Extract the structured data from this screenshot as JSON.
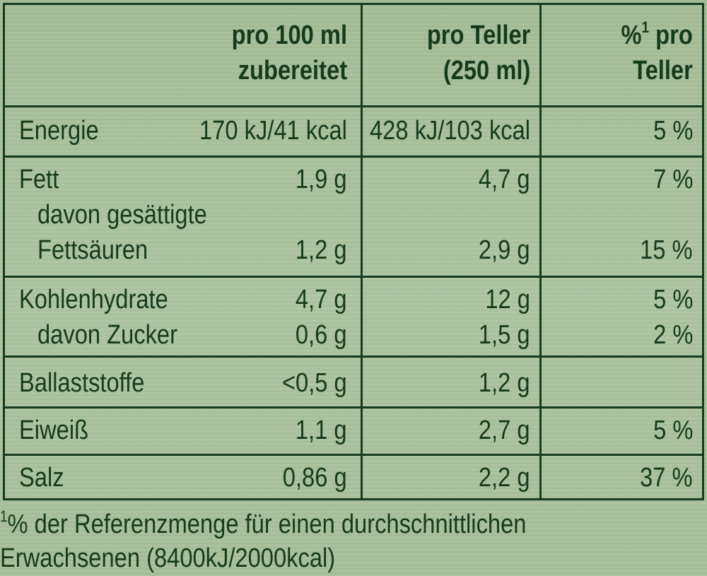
{
  "headers": {
    "col1_line1": "pro 100 ml",
    "col1_line2": "zubereitet",
    "col2_line1": "pro Teller",
    "col2_line2": "(250 ml)",
    "col3_sup_prefix": "%",
    "col3_sup": "1",
    "col3_line1_suffix": " pro",
    "col3_line2": "Teller"
  },
  "rows": {
    "energie": {
      "label": "Energie",
      "per100": "170 kJ/41 kcal",
      "perPlate": "428 kJ/103 kcal",
      "percent": "5 %"
    },
    "fett": {
      "label": "Fett",
      "per100": "1,9 g",
      "perPlate": "4,7 g",
      "percent": "7 %"
    },
    "fettsaeuren": {
      "label1": "davon gesättigte",
      "label2": "Fettsäuren",
      "per100": "1,2 g",
      "perPlate": "2,9 g",
      "percent": "15 %"
    },
    "kohlenhydrate": {
      "label": "Kohlenhydrate",
      "per100": "4,7 g",
      "perPlate": "12 g",
      "percent": "5 %"
    },
    "zucker": {
      "label": "davon Zucker",
      "per100": "0,6 g",
      "perPlate": "1,5 g",
      "percent": "2 %"
    },
    "ballaststoffe": {
      "label": "Ballaststoffe",
      "per100": "<0,5 g",
      "perPlate": "1,2 g",
      "percent": ""
    },
    "eiweiss": {
      "label": "Eiweiß",
      "per100": "1,1 g",
      "perPlate": "2,7 g",
      "percent": "5 %"
    },
    "salz": {
      "label": "Salz",
      "per100": "0,86 g",
      "perPlate": "2,2 g",
      "percent": "37 %"
    }
  },
  "footnote": {
    "sup": "1",
    "line1": "% der Referenzmenge für einen durchschnittlichen",
    "line2": "Erwachsenen (8400kJ/2000kcal)"
  },
  "colors": {
    "border": "#163c1f",
    "text": "#143b1c",
    "background": "#a9c29c"
  }
}
